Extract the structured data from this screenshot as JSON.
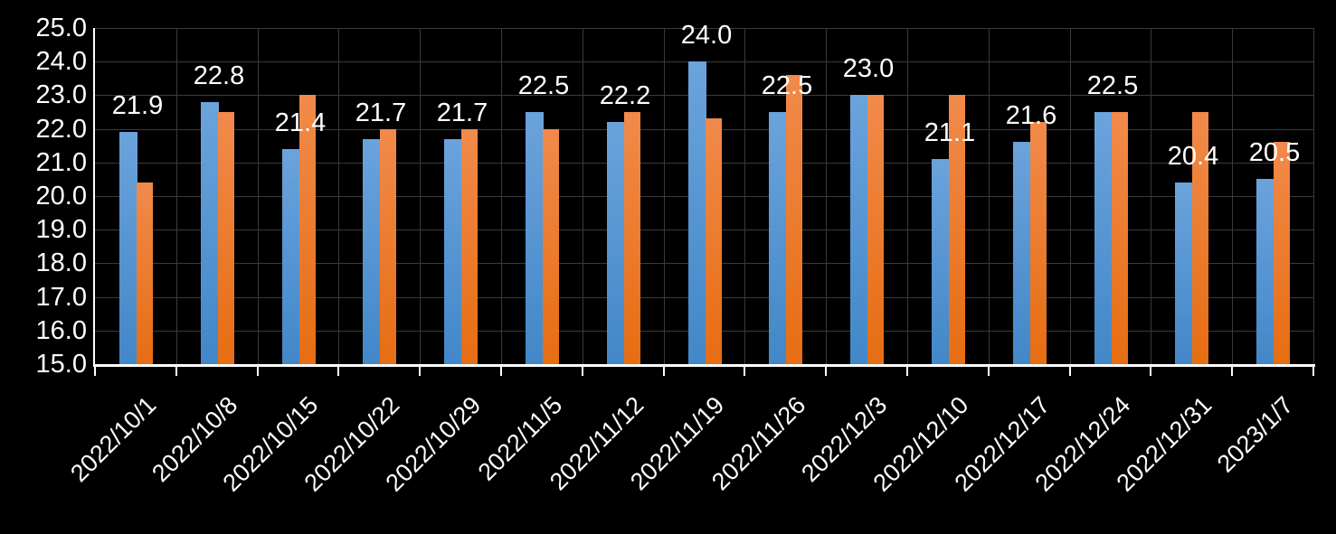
{
  "chart_data": {
    "type": "bar",
    "title": "",
    "xlabel": "",
    "ylabel": "",
    "legend": "none",
    "grid": true,
    "categories": [
      "2022/10/1",
      "2022/10/8",
      "2022/10/15",
      "2022/10/22",
      "2022/10/29",
      "2022/11/5",
      "2022/11/12",
      "2022/11/19",
      "2022/11/26",
      "2022/12/3",
      "2022/12/10",
      "2022/12/17",
      "2022/12/24",
      "2022/12/31",
      "2023/1/7"
    ],
    "series": [
      {
        "name": "blue-series",
        "values": [
          21.9,
          22.8,
          21.4,
          21.7,
          21.7,
          22.5,
          22.2,
          24.0,
          22.5,
          23.0,
          21.1,
          21.6,
          22.5,
          20.4,
          20.5
        ]
      },
      {
        "name": "orange-series",
        "values": [
          20.4,
          22.5,
          23.0,
          22.0,
          22.0,
          22.0,
          22.5,
          22.3,
          23.6,
          23.0,
          23.0,
          22.2,
          22.5,
          22.5,
          21.6
        ]
      }
    ],
    "data_labels": {
      "on_series": "blue-series",
      "values": [
        "21.9",
        "22.8",
        "21.4",
        "21.7",
        "21.7",
        "22.5",
        "22.2",
        "24.0",
        "22.5",
        "23.0",
        "21.1",
        "21.6",
        "22.5",
        "20.4",
        "20.5"
      ]
    },
    "y_axis": {
      "min": 15.0,
      "max": 25.0,
      "step": 1.0,
      "tick_labels": [
        "25.0",
        "24.0",
        "23.0",
        "22.0",
        "21.0",
        "20.0",
        "19.0",
        "18.0",
        "17.0",
        "16.0",
        "15.0"
      ]
    },
    "ylim": [
      15.0,
      25.0
    ]
  },
  "colors": {
    "background": "#000000",
    "text": "#FFFFFF",
    "gridline": "#3A3A3A",
    "axis_line": "#FFFFFF",
    "blue_top": "#6BA3DC",
    "blue_bottom": "#4287C8",
    "orange_top": "#F18A4B",
    "orange_bottom": "#E66D12"
  }
}
